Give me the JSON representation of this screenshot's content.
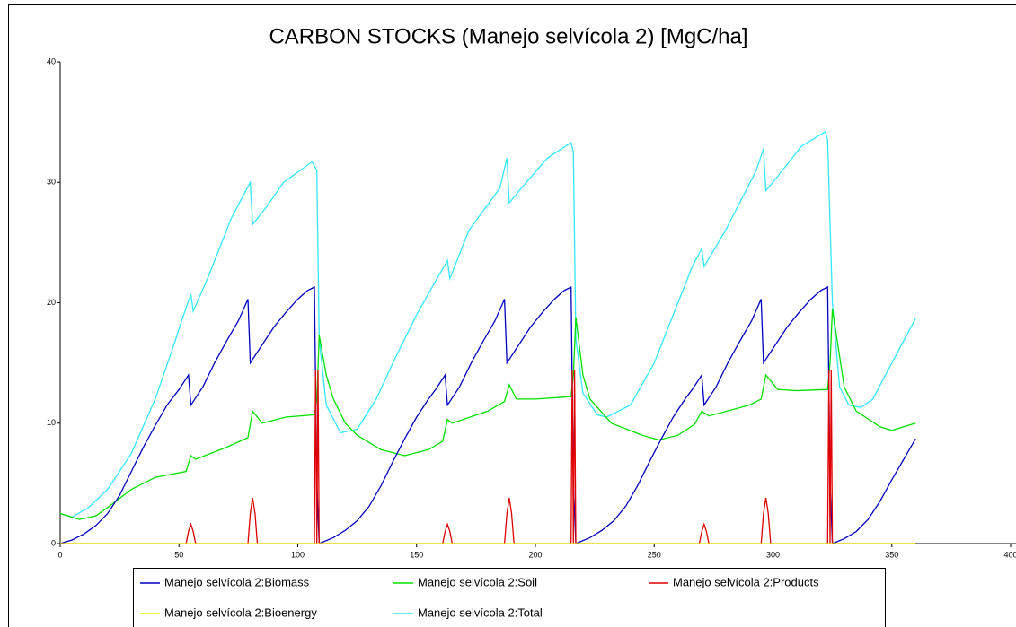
{
  "chart_data": {
    "type": "line",
    "title": "CARBON STOCKS (Manejo selvícola 2) [MgC/ha]",
    "xlim": [
      0,
      400
    ],
    "xticks": [
      0,
      50,
      100,
      150,
      200,
      250,
      300,
      350,
      400
    ],
    "ylim": [
      0,
      40
    ],
    "yticks": [
      0,
      10,
      20,
      30,
      40
    ],
    "series": [
      {
        "name": "Manejo selvícola 2:Biomass",
        "color": "#0000c0",
        "x": [
          0,
          5,
          10,
          15,
          20,
          25,
          30,
          35,
          40,
          45,
          50,
          54,
          55,
          60,
          65,
          70,
          75,
          79,
          80,
          85,
          90,
          95,
          100,
          104,
          107,
          108,
          109,
          115,
          120,
          125,
          130,
          135,
          140,
          145,
          150,
          155,
          158,
          162,
          163,
          168,
          173,
          178,
          183,
          187,
          188,
          193,
          198,
          203,
          208,
          212,
          215,
          216,
          217,
          223,
          228,
          233,
          238,
          243,
          248,
          253,
          258,
          263,
          266,
          270,
          271,
          276,
          281,
          286,
          291,
          295,
          296,
          301,
          306,
          311,
          316,
          320,
          323,
          324,
          325,
          330,
          335,
          340,
          345,
          350,
          355,
          360
        ],
        "values": [
          0,
          0.3,
          0.8,
          1.5,
          2.5,
          4,
          6,
          8,
          9.8,
          11.5,
          12.8,
          14,
          11.5,
          13,
          15,
          16.8,
          18.5,
          20.3,
          15,
          16.5,
          18,
          19.2,
          20.3,
          21,
          21.3,
          5,
          0,
          0.5,
          1.1,
          1.9,
          3.1,
          4.8,
          6.8,
          8.7,
          10.5,
          12,
          12.8,
          14,
          11.5,
          13,
          15,
          16.8,
          18.5,
          20.3,
          15,
          16.5,
          18,
          19.2,
          20.3,
          21,
          21.3,
          5,
          0,
          0.5,
          1.1,
          1.9,
          3.1,
          4.8,
          6.8,
          8.7,
          10.5,
          12,
          12.8,
          14,
          11.5,
          13,
          15,
          16.8,
          18.5,
          20.3,
          15,
          16.5,
          18,
          19.2,
          20.3,
          21,
          21.3,
          5,
          0,
          0.4,
          1,
          2,
          3.5,
          5.3,
          7,
          8.7
        ]
      },
      {
        "name": "Manejo selvícola 2:Soil",
        "color": "#00e000",
        "x": [
          0,
          8,
          15,
          20,
          30,
          40,
          53,
          55,
          57,
          70,
          79,
          81,
          85,
          95,
          107,
          108,
          109,
          112,
          115,
          120,
          125,
          135,
          145,
          155,
          161,
          163,
          165,
          180,
          187,
          189,
          192,
          200,
          215,
          216,
          217,
          220,
          223,
          232,
          245,
          252,
          260,
          267,
          270,
          273,
          290,
          295,
          297,
          302,
          310,
          323,
          324,
          325,
          330,
          335,
          345,
          350,
          360
        ],
        "values": [
          2.5,
          2,
          2.3,
          3,
          4.5,
          5.5,
          6,
          7.3,
          7,
          8,
          8.8,
          11,
          10,
          10.5,
          10.7,
          12,
          17.3,
          14,
          12,
          10,
          9,
          7.8,
          7.3,
          7.8,
          8.5,
          10.3,
          10,
          11,
          11.8,
          13.2,
          12,
          12,
          12.2,
          14,
          18.8,
          14,
          12,
          10,
          9,
          8.6,
          9,
          9.9,
          11,
          10.6,
          11.5,
          12,
          14,
          12.8,
          12.7,
          12.8,
          15,
          19.5,
          13,
          11,
          9.7,
          9.4,
          10
        ]
      },
      {
        "name": "Manejo selvícola 2:Products",
        "color": "#e00000",
        "x": [
          0,
          53,
          54,
          55,
          56,
          57,
          79,
          80,
          81,
          82,
          83,
          107,
          107.5,
          108,
          108.5,
          109,
          161,
          162,
          163,
          164,
          165,
          187,
          188,
          189,
          190,
          191,
          215,
          215.5,
          216,
          216.5,
          217,
          269,
          270,
          271,
          272,
          273,
          295,
          296,
          297,
          298,
          299,
          323,
          323.5,
          324,
          324.5,
          325,
          360
        ],
        "values": [
          0,
          0,
          1,
          1.6,
          1,
          0,
          0,
          2.5,
          3.8,
          2.5,
          0,
          0,
          14.4,
          0,
          14.4,
          0,
          0,
          1,
          1.6,
          1,
          0,
          0,
          2.5,
          3.8,
          2.5,
          0,
          0,
          14.4,
          0,
          14.4,
          0,
          0,
          1,
          1.6,
          1,
          0,
          0,
          2.5,
          3.8,
          2.5,
          0,
          0,
          14.4,
          0,
          14.4,
          0,
          0
        ]
      },
      {
        "name": "Manejo selvícola 2:Bioenergy",
        "color": "#f0f000",
        "x": [
          0,
          360
        ],
        "values": [
          0,
          0
        ]
      },
      {
        "name": "Manejo selvícola 2:Total",
        "color": "#30e8f8",
        "x": [
          0,
          5,
          12,
          20,
          30,
          40,
          47,
          52,
          55,
          56,
          62,
          72,
          80,
          81,
          87,
          94,
          106,
          108,
          109,
          112,
          118,
          125,
          133,
          140,
          150,
          160,
          163,
          164,
          172,
          185,
          188,
          189,
          194,
          205,
          215,
          216,
          217,
          220,
          226,
          230,
          240,
          250,
          258,
          266,
          270,
          271,
          280,
          293,
          296,
          297,
          302,
          312,
          322,
          323,
          325,
          328,
          332,
          337,
          342,
          350,
          360
        ],
        "values": [
          2.5,
          2.2,
          3,
          4.5,
          7.5,
          12,
          16,
          19,
          20.7,
          19.3,
          22,
          27,
          30,
          26.5,
          28,
          30,
          31.7,
          31,
          17,
          11.5,
          9.2,
          9.5,
          12,
          15,
          19,
          22.5,
          23.5,
          22,
          26,
          29.5,
          32,
          28.3,
          29.5,
          32,
          33.3,
          32.5,
          17,
          12.5,
          10.7,
          10.5,
          11.5,
          15,
          19,
          23,
          24.5,
          23,
          26,
          31,
          32.8,
          29.3,
          30.5,
          33,
          34.2,
          33.5,
          20,
          13,
          11.5,
          11.3,
          12,
          15,
          18.7
        ]
      }
    ]
  }
}
